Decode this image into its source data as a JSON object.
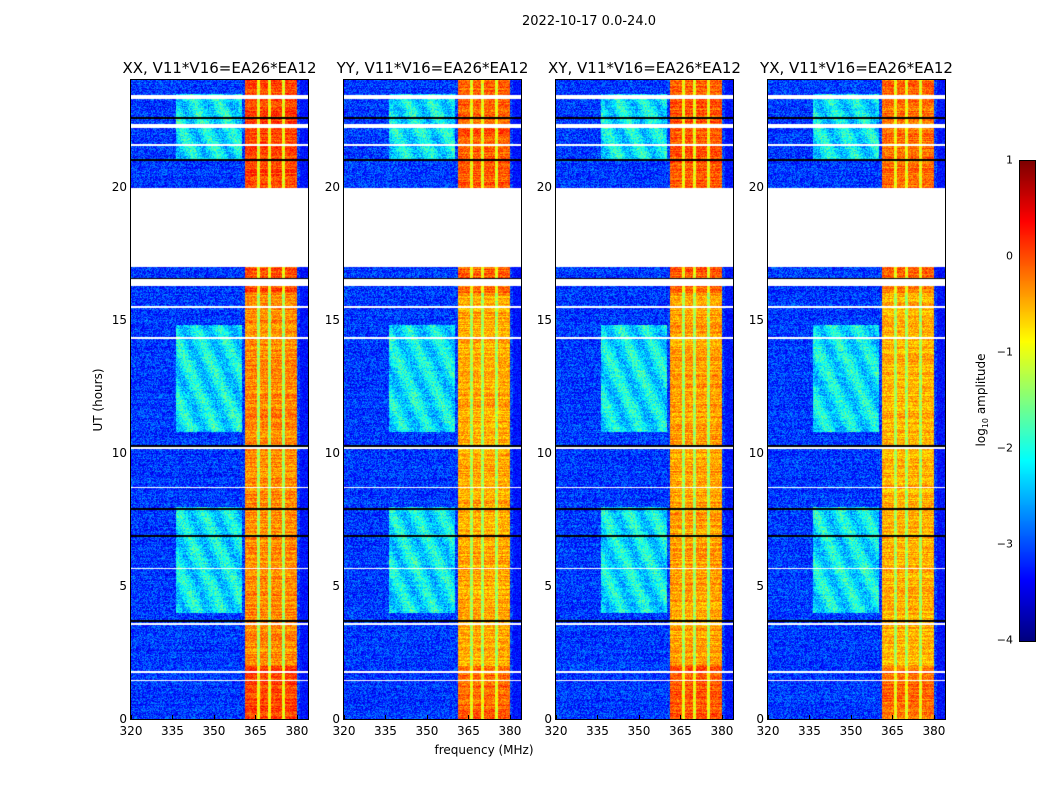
{
  "chart_data": {
    "type": "heatmap",
    "suptitle": "2022-10-17 0.0-24.0",
    "xlabel": "frequency (MHz)",
    "ylabel": "UT (hours)",
    "xlim": [
      320,
      384
    ],
    "ylim": [
      0,
      24
    ],
    "xticks": [
      320,
      335,
      350,
      365,
      380
    ],
    "yticks": [
      0,
      5,
      10,
      15,
      20
    ],
    "colorbar": {
      "label_prefix": "log",
      "label_sub": "10",
      "label_suffix": " amplitude",
      "range": [
        -4,
        1
      ],
      "ticks": [
        1,
        0,
        -1,
        -2,
        -3,
        -4
      ],
      "tick_labels": [
        "1",
        "0",
        "−1",
        "−2",
        "−3",
        "−4"
      ],
      "colormap": "jet"
    },
    "panels": [
      {
        "title": "XX, V11*V16=EA26*EA12",
        "band_level": -0.3
      },
      {
        "title": "YY, V11*V16=EA26*EA12",
        "band_level": -0.45
      },
      {
        "title": "XY, V11*V16=EA26*EA12",
        "band_level": -0.4
      },
      {
        "title": "YX, V11*V16=EA26*EA12",
        "band_level": -0.5
      }
    ],
    "rfi_band_mhz": [
      361,
      380
    ],
    "rfi_dividers_mhz": [
      366,
      370,
      375
    ],
    "blank_intervals_hours": [
      [
        17.0,
        19.95
      ],
      [
        16.3,
        16.55
      ],
      [
        22.2,
        22.35
      ],
      [
        23.3,
        23.45
      ],
      [
        21.55,
        21.6
      ],
      [
        10.15,
        10.22
      ],
      [
        3.55,
        3.62
      ],
      [
        1.75,
        1.82
      ],
      [
        1.45,
        1.5
      ],
      [
        15.45,
        15.52
      ],
      [
        14.3,
        14.35
      ],
      [
        8.7,
        8.75
      ],
      [
        5.65,
        5.7
      ]
    ],
    "flag_lines_hours": [
      21.0,
      16.55,
      10.28,
      3.7,
      7.9,
      6.9,
      22.6
    ]
  }
}
